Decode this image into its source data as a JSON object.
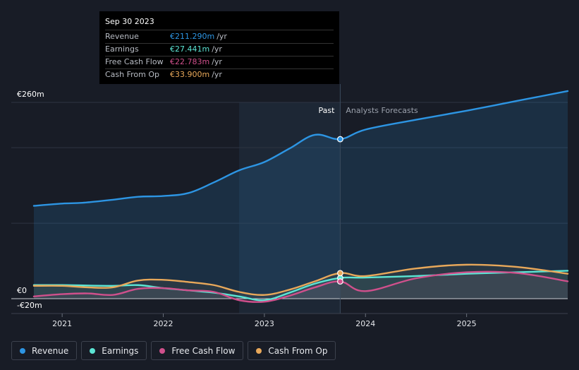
{
  "chart_data": {
    "type": "area",
    "y_axis": {
      "top_label": "€260m",
      "zero_label": "€0",
      "bottom_label": "-€20m",
      "ylim": [
        -20,
        260
      ]
    },
    "x_axis": {
      "ticks": [
        "2021",
        "2022",
        "2023",
        "2024",
        "2025"
      ],
      "xlim": [
        2020.72,
        2026.0
      ]
    },
    "divider": {
      "x": 2023.75,
      "past_label": "Past",
      "forecast_label": "Analysts Forecasts"
    },
    "series": [
      {
        "name": "Revenue",
        "color": "#2d95e3",
        "points": [
          [
            2020.72,
            123
          ],
          [
            2021.0,
            126
          ],
          [
            2021.2,
            127
          ],
          [
            2021.5,
            131
          ],
          [
            2021.75,
            135
          ],
          [
            2022.0,
            136
          ],
          [
            2022.25,
            140
          ],
          [
            2022.5,
            154
          ],
          [
            2022.75,
            170
          ],
          [
            2023.0,
            181
          ],
          [
            2023.25,
            199
          ],
          [
            2023.5,
            217
          ],
          [
            2023.75,
            211.29
          ],
          [
            2024.0,
            224
          ],
          [
            2024.5,
            237
          ],
          [
            2025.0,
            249
          ],
          [
            2025.5,
            262
          ],
          [
            2026.0,
            275
          ]
        ]
      },
      {
        "name": "Earnings",
        "color": "#5ce5d4",
        "points": [
          [
            2020.72,
            18
          ],
          [
            2021.0,
            18
          ],
          [
            2021.5,
            17
          ],
          [
            2021.75,
            18
          ],
          [
            2022.0,
            14
          ],
          [
            2022.25,
            11
          ],
          [
            2022.5,
            8
          ],
          [
            2022.75,
            3
          ],
          [
            2023.0,
            -2
          ],
          [
            2023.25,
            8
          ],
          [
            2023.5,
            20
          ],
          [
            2023.75,
            27.441
          ],
          [
            2024.0,
            28
          ],
          [
            2024.5,
            30
          ],
          [
            2025.0,
            33
          ],
          [
            2025.5,
            35
          ],
          [
            2026.0,
            37
          ]
        ]
      },
      {
        "name": "Free Cash Flow",
        "color": "#d0508c",
        "points": [
          [
            2020.72,
            3
          ],
          [
            2021.0,
            6
          ],
          [
            2021.25,
            7
          ],
          [
            2021.5,
            5
          ],
          [
            2021.75,
            13
          ],
          [
            2022.0,
            14
          ],
          [
            2022.25,
            11
          ],
          [
            2022.5,
            9
          ],
          [
            2022.75,
            -2
          ],
          [
            2023.0,
            -4
          ],
          [
            2023.25,
            4
          ],
          [
            2023.5,
            15
          ],
          [
            2023.75,
            22.783
          ],
          [
            2024.0,
            10
          ],
          [
            2024.5,
            27
          ],
          [
            2025.0,
            35
          ],
          [
            2025.5,
            34
          ],
          [
            2026.0,
            23
          ]
        ]
      },
      {
        "name": "Cash From Op",
        "color": "#e8a85a",
        "points": [
          [
            2020.72,
            17
          ],
          [
            2021.0,
            17
          ],
          [
            2021.25,
            15
          ],
          [
            2021.5,
            15
          ],
          [
            2021.75,
            24
          ],
          [
            2022.0,
            25
          ],
          [
            2022.25,
            22
          ],
          [
            2022.5,
            18
          ],
          [
            2022.75,
            9
          ],
          [
            2023.0,
            5
          ],
          [
            2023.25,
            12
          ],
          [
            2023.5,
            23
          ],
          [
            2023.75,
            33.9
          ],
          [
            2024.0,
            30
          ],
          [
            2024.5,
            40
          ],
          [
            2025.0,
            45
          ],
          [
            2025.5,
            42
          ],
          [
            2026.0,
            33
          ]
        ]
      }
    ],
    "highlight_point": {
      "x": 2023.75,
      "values": [
        211.29,
        27.441,
        22.783,
        33.9
      ]
    }
  },
  "tooltip": {
    "date": "Sep 30 2023",
    "unit": "/yr",
    "rows": [
      {
        "label": "Revenue",
        "value": "€211.290m",
        "color": "#2d95e3"
      },
      {
        "label": "Earnings",
        "value": "€27.441m",
        "color": "#5ce5d4"
      },
      {
        "label": "Free Cash Flow",
        "value": "€22.783m",
        "color": "#d0508c"
      },
      {
        "label": "Cash From Op",
        "value": "€33.900m",
        "color": "#e8a85a"
      }
    ]
  },
  "legend": [
    {
      "label": "Revenue",
      "color": "#2d95e3"
    },
    {
      "label": "Earnings",
      "color": "#5ce5d4"
    },
    {
      "label": "Free Cash Flow",
      "color": "#d0508c"
    },
    {
      "label": "Cash From Op",
      "color": "#e8a85a"
    }
  ]
}
